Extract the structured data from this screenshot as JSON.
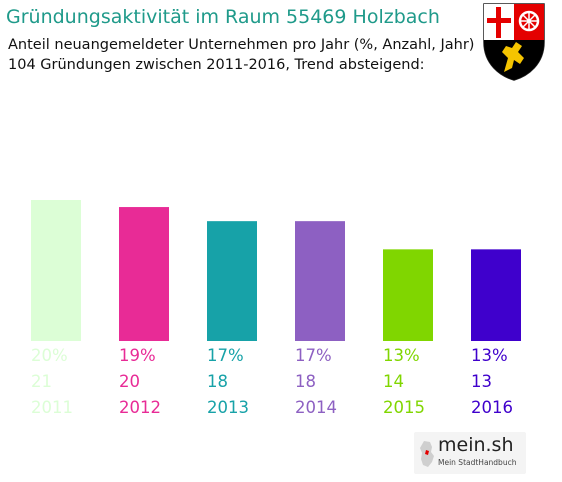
{
  "header": {
    "title": "Gründungsaktivität im Raum 55469 Holzbach",
    "subtitle_line1": "Anteil neuangemeldeter Unternehmen pro Jahr (%, Anzahl, Jahr)",
    "subtitle_line2": "104 Gründungen zwischen 2011-2016, Trend absteigend:"
  },
  "coat_of_arms": {
    "icon": "rhineland-palatinate-coat-of-arms-icon"
  },
  "logo": {
    "name": "mein.sh",
    "tagline": "Mein StadtHandbuch",
    "icon": "germany-map-icon"
  },
  "chart_data": {
    "type": "bar",
    "categories": [
      "2011",
      "2012",
      "2013",
      "2014",
      "2015",
      "2016"
    ],
    "values": [
      20,
      19,
      17,
      17,
      13,
      13
    ],
    "percent_labels": [
      "20%",
      "19%",
      "17%",
      "17%",
      "13%",
      "13%"
    ],
    "counts": [
      21,
      20,
      18,
      18,
      14,
      13
    ],
    "colors": [
      "#dcfed6",
      "#e82b96",
      "#17a2a8",
      "#8d60c2",
      "#80d600",
      "#3f00cc"
    ],
    "grid": false,
    "legend": "none"
  }
}
